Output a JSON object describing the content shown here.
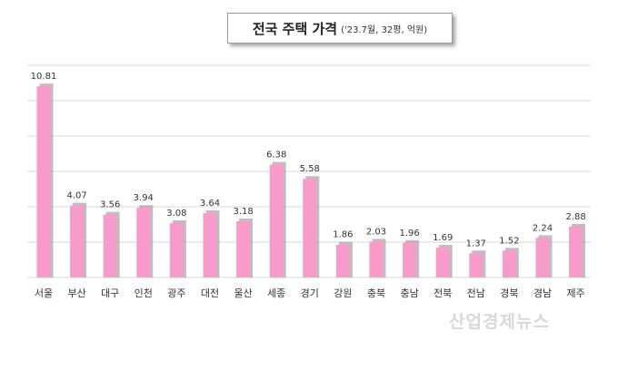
{
  "chart_data": {
    "type": "bar",
    "title": "전국 주택 가격",
    "subtitle": "('23.7월, 32평, 억원)",
    "categories": [
      "서울",
      "부산",
      "대구",
      "인천",
      "광주",
      "대전",
      "울산",
      "세종",
      "경기",
      "강원",
      "충북",
      "충남",
      "전북",
      "전남",
      "경북",
      "경남",
      "제주"
    ],
    "values": [
      10.81,
      4.07,
      3.56,
      3.94,
      3.08,
      3.64,
      3.18,
      6.38,
      5.58,
      1.86,
      2.03,
      1.96,
      1.69,
      1.37,
      1.52,
      2.24,
      2.88
    ],
    "value_labels": [
      "10.81",
      "4.07",
      "3.56",
      "3.94",
      "3.08",
      "3.64",
      "3.18",
      "6.38",
      "5.58",
      "1.86",
      "2.03",
      "1.96",
      "1.69",
      "1.37",
      "1.52",
      "2.24",
      "2.88"
    ],
    "xlabel": "",
    "ylabel": "",
    "ylim": [
      0,
      12
    ],
    "grid": true,
    "bar_color": "#f79bcb",
    "bar_shadow_color": "#8a8a8a",
    "grid_color": "#d9d9d9"
  },
  "watermark": "산업경제뉴스"
}
